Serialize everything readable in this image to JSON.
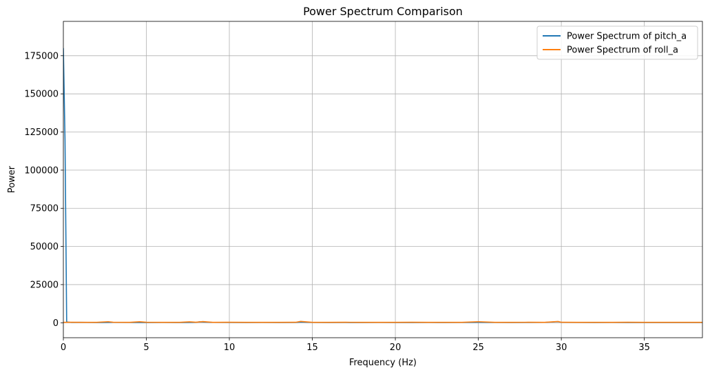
{
  "chart_data": {
    "type": "line",
    "title": "Power Spectrum Comparison",
    "xlabel": "Frequency (Hz)",
    "ylabel": "Power",
    "xlim": [
      0,
      38.5
    ],
    "ylim": [
      -9800,
      197500
    ],
    "xticks": [
      0,
      5,
      10,
      15,
      20,
      25,
      30,
      35
    ],
    "yticks": [
      0,
      25000,
      50000,
      75000,
      100000,
      125000,
      150000,
      175000
    ],
    "xtick_labels": [
      "0",
      "5",
      "10",
      "15",
      "20",
      "25",
      "30",
      "35"
    ],
    "ytick_labels": [
      "0",
      "25000",
      "50000",
      "75000",
      "100000",
      "125000",
      "150000",
      "175000"
    ],
    "grid": true,
    "legend_position": "top-right",
    "series": [
      {
        "name": "Power Spectrum of pitch_a",
        "color": "#1f77b4",
        "x": [
          0,
          0.1,
          0.2,
          0.5,
          1,
          2,
          3,
          4,
          5,
          6,
          7,
          8,
          8.2,
          9,
          10,
          11,
          12,
          13,
          14,
          14.3,
          15,
          16,
          17,
          18,
          19,
          20,
          21,
          22,
          23,
          24,
          25,
          26,
          27,
          28,
          29,
          29.8,
          30,
          31,
          32,
          33,
          34,
          35,
          36,
          37,
          38,
          38.5
        ],
        "y": [
          180000,
          120000,
          500,
          200,
          300,
          150,
          250,
          200,
          180,
          220,
          160,
          300,
          600,
          250,
          200,
          180,
          210,
          170,
          230,
          500,
          190,
          160,
          200,
          150,
          210,
          180,
          170,
          200,
          160,
          190,
          300,
          200,
          180,
          220,
          250,
          700,
          300,
          190,
          170,
          200,
          160,
          180,
          150,
          170,
          160,
          150
        ]
      },
      {
        "name": "Power Spectrum of roll_a",
        "color": "#ff7f0e",
        "x": [
          0,
          0.5,
          1,
          2,
          2.7,
          3,
          4,
          4.6,
          5,
          6,
          7,
          7.6,
          8,
          8.4,
          9,
          10,
          11,
          12,
          13,
          14,
          14.3,
          15,
          16,
          17,
          18,
          19,
          20,
          21,
          22,
          23,
          24,
          25,
          26,
          27,
          28,
          29,
          29.8,
          30,
          31,
          32,
          33,
          34,
          35,
          36,
          37,
          38,
          38.5
        ],
        "y": [
          300,
          350,
          280,
          300,
          700,
          320,
          290,
          650,
          310,
          280,
          300,
          600,
          320,
          800,
          300,
          310,
          290,
          300,
          280,
          310,
          900,
          300,
          290,
          310,
          280,
          300,
          290,
          310,
          280,
          300,
          290,
          700,
          300,
          290,
          310,
          300,
          850,
          310,
          290,
          300,
          280,
          310,
          290,
          300,
          280,
          300,
          290
        ]
      }
    ]
  }
}
